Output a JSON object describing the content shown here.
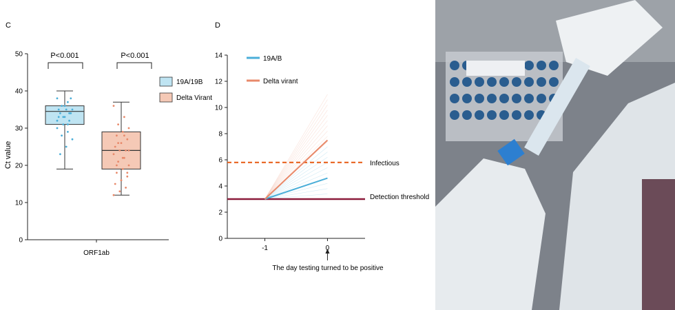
{
  "panel_c": {
    "label": "C",
    "title": "",
    "ylabel": "Ct value",
    "xlabel": "ORF1ab",
    "p_labels": [
      "P<0.001",
      "P<0.001"
    ],
    "legend": [
      "19A/19B",
      "Delta Virant"
    ]
  },
  "panel_d": {
    "label": "D",
    "legend": [
      "19A/B",
      "Delta virant"
    ],
    "infectious_label": "Infectious",
    "threshold_label": "Detection threshold",
    "annotation": "The day testing turned to be positive"
  },
  "colors": {
    "blue_fill": "#bfe4f2",
    "blue_line": "#4aaed8",
    "orange_fill": "#f5c9b6",
    "orange_line": "#e8896a",
    "dashed_orange": "#e8621e",
    "threshold": "#8b1a3a",
    "photo_bg": "#8a8e96"
  },
  "chart_data": [
    {
      "type": "box",
      "ylim": [
        0,
        50
      ],
      "yticks": [
        0,
        10,
        20,
        30,
        40,
        50
      ],
      "categories": [
        "ORF1ab"
      ],
      "series": [
        {
          "name": "19A/19B",
          "min": 19,
          "q1": 31,
          "median": 34.5,
          "q3": 36,
          "max": 40,
          "points": [
            38,
            37,
            36,
            35,
            35,
            34,
            34,
            33,
            33,
            32,
            31,
            30,
            29,
            28,
            27,
            25,
            23,
            38,
            36,
            35,
            34,
            33,
            32,
            31
          ]
        },
        {
          "name": "Delta Virant",
          "min": 12,
          "q1": 19,
          "median": 24,
          "q3": 29,
          "max": 37,
          "points": [
            36,
            33,
            31,
            30,
            29,
            28,
            27,
            26,
            25,
            24,
            24,
            23,
            22,
            21,
            20,
            19,
            18,
            17,
            16,
            15,
            14,
            13,
            12,
            28,
            26,
            24,
            22,
            20,
            18,
            16
          ]
        }
      ]
    },
    {
      "type": "line",
      "xlim": [
        -1.6,
        0.6
      ],
      "xticks": [
        -1,
        0
      ],
      "ylim": [
        0,
        14
      ],
      "yticks": [
        0,
        2,
        4,
        6,
        8,
        10,
        12,
        14
      ],
      "detection_threshold": 3,
      "infectious_level": 5.8,
      "series": [
        {
          "name": "19A/B",
          "x": [
            -1,
            0
          ],
          "y": [
            3,
            4.6
          ]
        },
        {
          "name": "Delta virant",
          "x": [
            -1,
            0
          ],
          "y": [
            3,
            7.5
          ]
        }
      ],
      "faint_lines_end_y": [
        11,
        10.6,
        10.2,
        9.8,
        9.4,
        9.0,
        8.6,
        8.2,
        7.8,
        7.4,
        7.0,
        6.6,
        6.2,
        5.8,
        5.4,
        5.0,
        4.6,
        4.2,
        3.8,
        3.4
      ]
    }
  ]
}
